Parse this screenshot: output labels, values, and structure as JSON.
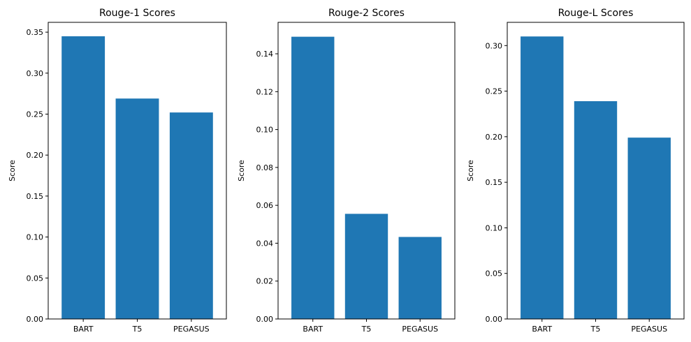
{
  "chart_data": [
    {
      "type": "bar",
      "title": "Rouge-1 Scores",
      "xlabel": "",
      "ylabel": "Score",
      "categories": [
        "BART",
        "T5",
        "PEGASUS"
      ],
      "values": [
        0.345,
        0.269,
        0.252
      ],
      "ylim": [
        0,
        0.362
      ],
      "yticks": [
        0.0,
        0.05,
        0.1,
        0.15,
        0.2,
        0.25,
        0.3,
        0.35
      ],
      "ytick_labels": [
        "0.00",
        "0.05",
        "0.10",
        "0.15",
        "0.20",
        "0.25",
        "0.30",
        "0.35"
      ],
      "bar_color": "#1f77b4",
      "grid": false
    },
    {
      "type": "bar",
      "title": "Rouge-2 Scores",
      "xlabel": "",
      "ylabel": "Score",
      "categories": [
        "BART",
        "T5",
        "PEGASUS"
      ],
      "values": [
        0.149,
        0.0555,
        0.0433
      ],
      "ylim": [
        0,
        0.1566
      ],
      "yticks": [
        0.0,
        0.02,
        0.04,
        0.06,
        0.08,
        0.1,
        0.12,
        0.14
      ],
      "ytick_labels": [
        "0.00",
        "0.02",
        "0.04",
        "0.06",
        "0.08",
        "0.10",
        "0.12",
        "0.14"
      ],
      "bar_color": "#1f77b4",
      "grid": false
    },
    {
      "type": "bar",
      "title": "Rouge-L Scores",
      "xlabel": "",
      "ylabel": "Score",
      "categories": [
        "BART",
        "T5",
        "PEGASUS"
      ],
      "values": [
        0.31,
        0.239,
        0.199
      ],
      "ylim": [
        0,
        0.3255
      ],
      "yticks": [
        0.0,
        0.05,
        0.1,
        0.15,
        0.2,
        0.25,
        0.3
      ],
      "ytick_labels": [
        "0.00",
        "0.05",
        "0.10",
        "0.15",
        "0.20",
        "0.25",
        "0.30"
      ],
      "bar_color": "#1f77b4",
      "grid": false
    }
  ]
}
